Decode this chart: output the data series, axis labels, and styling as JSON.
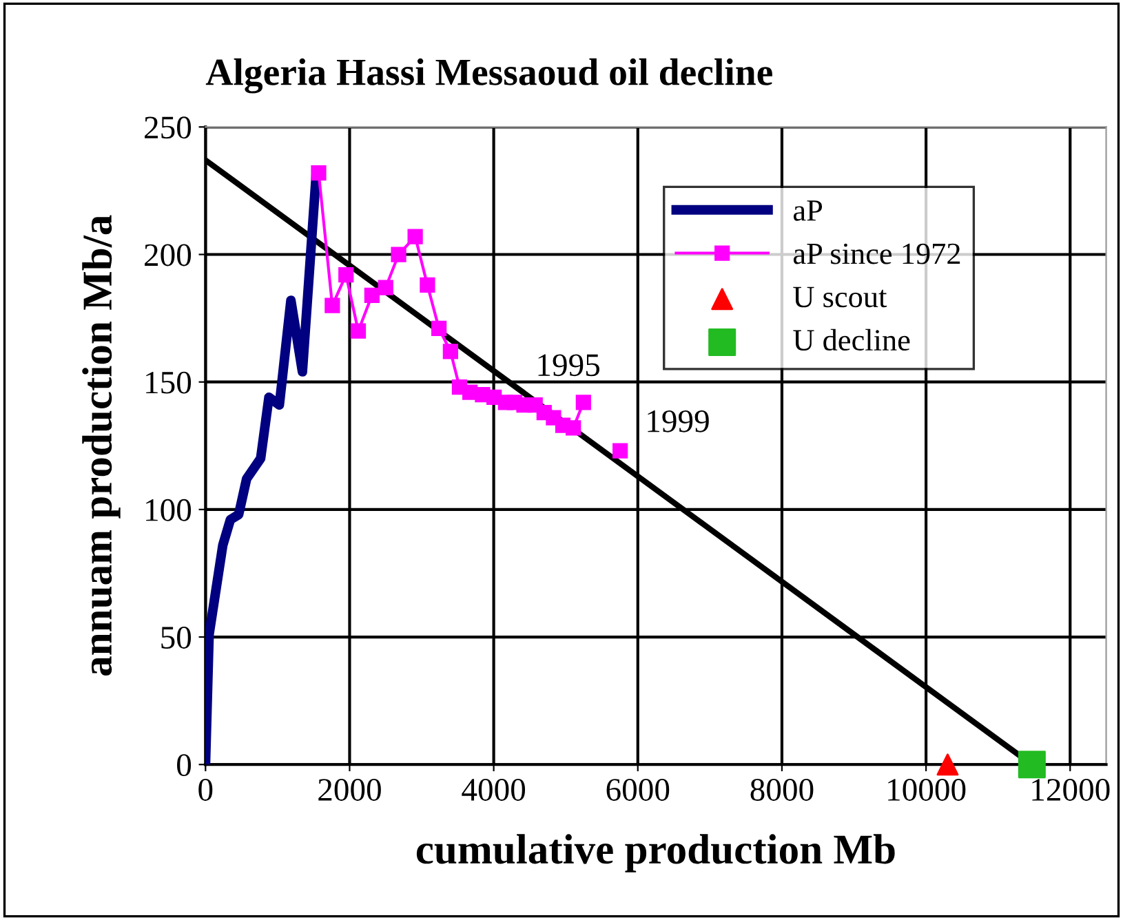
{
  "chart_data": {
    "type": "line",
    "title": "Algeria Hassi Messaoud oil decline",
    "xlabel": "cumulative production Mb",
    "ylabel": "annuam production Mb/a",
    "xlim": [
      0,
      12500
    ],
    "xticks": [
      0,
      2000,
      4000,
      6000,
      8000,
      10000,
      12000
    ],
    "ylim": [
      0,
      250
    ],
    "yticks": [
      0,
      50,
      100,
      150,
      200,
      250
    ],
    "grid": true,
    "legend": "top right",
    "series": [
      {
        "name": "aP",
        "color": "#000080",
        "marker": "none",
        "x": [
          0,
          50,
          240,
          345,
          460,
          570,
          765,
          880,
          1025,
          1185,
          1345,
          1535
        ],
        "values": [
          0,
          51,
          86,
          96,
          98,
          112,
          120,
          144,
          141,
          182,
          154,
          231
        ]
      },
      {
        "name": "aP since 1972",
        "color": "#ff00ff",
        "marker": "square",
        "x": [
          1570,
          1760,
          1950,
          2120,
          2310,
          2500,
          2680,
          2910,
          3080,
          3240,
          3400,
          3525,
          3670,
          3845,
          4005,
          4165,
          4290,
          4420,
          4575,
          4700,
          4830,
          4960,
          5105,
          5245,
          5500,
          5755
        ],
        "values": [
          232,
          180,
          192,
          170,
          184,
          187,
          200,
          207,
          188,
          171,
          162,
          148,
          146,
          145,
          144,
          142,
          142,
          141,
          141,
          138,
          136,
          133,
          132,
          142,
          null,
          123
        ]
      },
      {
        "name": "U scout",
        "type": "scatter",
        "color": "#ff0000",
        "marker": "triangle",
        "x": [
          10300
        ],
        "values": [
          0
        ]
      },
      {
        "name": "U decline",
        "type": "scatter",
        "color": "#22bb22",
        "marker": "square",
        "x": [
          11470
        ],
        "values": [
          0
        ]
      },
      {
        "color": "#000000",
        "marker": "none",
        "x": [
          0,
          11470
        ],
        "values": [
          237,
          0
        ]
      }
    ],
    "annotations": [
      {
        "text": "1995",
        "x": 5245,
        "y": 142
      },
      {
        "text": "1999",
        "x": 5755,
        "y": 123
      }
    ]
  }
}
